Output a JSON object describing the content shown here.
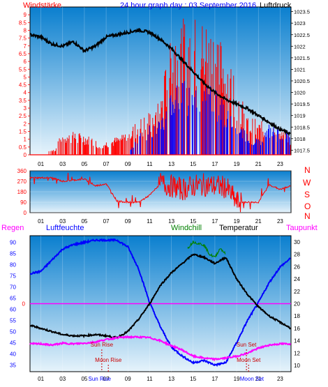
{
  "title": "24 hour graph day : 03 September 2016",
  "panels": {
    "wind": {
      "left_label": "Windstärke",
      "right_label": "Luftdruck"
    },
    "dir": {
      "compass": [
        "N",
        "W",
        "S",
        "O",
        "N"
      ]
    },
    "temp": {
      "labels": {
        "regen": "Regen",
        "luftfeuchte": "Luftfeuchte",
        "windchill": "Windchill",
        "temperatur": "Temperatur",
        "taupunkt": "Taupunkt"
      },
      "events": [
        {
          "label": "Sun Rise",
          "hour": 6.6
        },
        {
          "label": "Moon Rise",
          "hour": 7.2
        },
        {
          "label": "Sun Set",
          "hour": 19.9
        },
        {
          "label": "Moon Set",
          "hour": 20.1
        }
      ],
      "bottom_notes": [
        "Sun Rise",
        "Moon Set"
      ]
    }
  },
  "colors": {
    "bg_top": "#0a7fcf",
    "bg_bottom": "#e6f3fb",
    "wind": "#ff0000",
    "gust": "#0000ff",
    "pressure": "#000000",
    "humidity": "#0000ff",
    "temperature": "#000000",
    "dewpoint": "#ff00ff",
    "windchill": "#008000",
    "rain": "#ff00ff"
  },
  "chart_data": [
    {
      "type": "line",
      "name": "wind-pressure",
      "x_ticks": [
        "01",
        "03",
        "05",
        "07",
        "09",
        "11",
        "13",
        "15",
        "17",
        "19",
        "21",
        "23"
      ],
      "ylim_left": [
        0,
        9.5
      ],
      "yticks_left": [
        "0",
        "0.5",
        "1",
        "1.5",
        "2",
        "2.5",
        "3",
        "3.5",
        "4",
        "4.5",
        "5",
        "5.5",
        "6",
        "6.5",
        "7",
        "7.5",
        "8",
        "8.5",
        "9"
      ],
      "ylim_right": [
        1017.3,
        1023.7
      ],
      "yticks_right": [
        "1017.5",
        "1018",
        "1018.5",
        "1019",
        "1019.5",
        "1020",
        "1020.5",
        "1021",
        "1021.5",
        "1022",
        "1022.5",
        "1023",
        "1023.5"
      ],
      "pressure_points": [
        [
          0,
          1022.5
        ],
        [
          1,
          1022.4
        ],
        [
          2,
          1022.1
        ],
        [
          3,
          1022.0
        ],
        [
          4,
          1022.2
        ],
        [
          5,
          1021.8
        ],
        [
          6,
          1022.0
        ],
        [
          7,
          1022.4
        ],
        [
          8,
          1022.5
        ],
        [
          9,
          1022.6
        ],
        [
          10,
          1022.7
        ],
        [
          11,
          1022.6
        ],
        [
          12,
          1022.3
        ],
        [
          13,
          1021.9
        ],
        [
          14,
          1021.4
        ],
        [
          15,
          1020.9
        ],
        [
          16,
          1020.4
        ],
        [
          17,
          1020.0
        ],
        [
          18,
          1019.7
        ],
        [
          19,
          1019.5
        ],
        [
          20,
          1019.3
        ],
        [
          21,
          1019.0
        ],
        [
          22,
          1018.7
        ],
        [
          23,
          1018.4
        ],
        [
          24,
          1018.2
        ]
      ],
      "wind_profile": [
        [
          0,
          0
        ],
        [
          2.3,
          0.4
        ],
        [
          3,
          1.6
        ],
        [
          4,
          1.5
        ],
        [
          5,
          1.4
        ],
        [
          6.5,
          0.8
        ],
        [
          8,
          1.2
        ],
        [
          9.5,
          2
        ],
        [
          12,
          3.5
        ],
        [
          13,
          8.5
        ],
        [
          15,
          9
        ],
        [
          17,
          8.5
        ],
        [
          18.5,
          6
        ],
        [
          20,
          2.5
        ],
        [
          22,
          2
        ],
        [
          24,
          1.2
        ]
      ],
      "gust_profile": [
        [
          0,
          0
        ],
        [
          9,
          0
        ],
        [
          10,
          1.5
        ],
        [
          12,
          2.5
        ],
        [
          13,
          4.5
        ],
        [
          15,
          5
        ],
        [
          17,
          4.5
        ],
        [
          19,
          2
        ],
        [
          21,
          1
        ],
        [
          22,
          2
        ],
        [
          24,
          1.5
        ]
      ]
    },
    {
      "type": "scatter",
      "name": "wind-direction",
      "ylim": [
        0,
        360
      ],
      "yticks": [
        "0",
        "90",
        "180",
        "270",
        "360"
      ],
      "points_profile": [
        [
          0,
          300
        ],
        [
          2,
          300
        ],
        [
          3,
          270
        ],
        [
          5,
          290
        ],
        [
          6,
          230
        ],
        [
          7,
          250
        ],
        [
          8,
          100
        ],
        [
          9,
          90
        ],
        [
          10,
          90
        ],
        [
          11,
          150
        ],
        [
          12,
          250
        ],
        [
          13,
          230
        ],
        [
          14,
          200
        ],
        [
          15,
          230
        ],
        [
          16,
          240
        ],
        [
          17,
          230
        ],
        [
          18,
          220
        ],
        [
          19,
          90
        ],
        [
          21,
          90
        ],
        [
          22,
          240
        ],
        [
          23,
          200
        ],
        [
          24,
          230
        ]
      ]
    },
    {
      "type": "line",
      "name": "temp-humidity",
      "ylim_left": [
        32,
        93
      ],
      "yticks_left": [
        "35",
        "40",
        "45",
        "50",
        "55",
        "60",
        "65",
        "70",
        "75",
        "80",
        "85",
        "90"
      ],
      "ylim_right": [
        9,
        31
      ],
      "yticks_right": [
        "10",
        "12",
        "14",
        "16",
        "18",
        "20",
        "22",
        "24",
        "26",
        "28",
        "30"
      ],
      "zero_line_label": "0",
      "humidity": [
        [
          0,
          76
        ],
        [
          1,
          77
        ],
        [
          2,
          82
        ],
        [
          3,
          87
        ],
        [
          4,
          89
        ],
        [
          5,
          90
        ],
        [
          6,
          91
        ],
        [
          7,
          91
        ],
        [
          8,
          91
        ],
        [
          9,
          88
        ],
        [
          10,
          78
        ],
        [
          11,
          63
        ],
        [
          12,
          52
        ],
        [
          13,
          43
        ],
        [
          14,
          39
        ],
        [
          15,
          36
        ],
        [
          16,
          37
        ],
        [
          17,
          35
        ],
        [
          18,
          36
        ],
        [
          19,
          45
        ],
        [
          20,
          55
        ],
        [
          21,
          63
        ],
        [
          22,
          72
        ],
        [
          23,
          79
        ],
        [
          24,
          83
        ]
      ],
      "temperature": [
        [
          0,
          16.5
        ],
        [
          1,
          16
        ],
        [
          2,
          15.5
        ],
        [
          3,
          15
        ],
        [
          4,
          14.8
        ],
        [
          5,
          14.8
        ],
        [
          6,
          15
        ],
        [
          7,
          14.8
        ],
        [
          8,
          14.5
        ],
        [
          9,
          15.5
        ],
        [
          10,
          17.5
        ],
        [
          11,
          20
        ],
        [
          12,
          23
        ],
        [
          13,
          25
        ],
        [
          14,
          26.5
        ],
        [
          15,
          28
        ],
        [
          16,
          27.5
        ],
        [
          17,
          26.5
        ],
        [
          18,
          27.5
        ],
        [
          19,
          24
        ],
        [
          20,
          21.5
        ],
        [
          21,
          19.5
        ],
        [
          22,
          18
        ],
        [
          23,
          17
        ],
        [
          24,
          16
        ]
      ],
      "dewpoint": [
        [
          0,
          13.5
        ],
        [
          1,
          13.5
        ],
        [
          2,
          13.3
        ],
        [
          3,
          13.6
        ],
        [
          4,
          13.5
        ],
        [
          5,
          13.6
        ],
        [
          6,
          13.8
        ],
        [
          7,
          14.2
        ],
        [
          8,
          14.5
        ],
        [
          9,
          14.6
        ],
        [
          10,
          14.6
        ],
        [
          11,
          14.5
        ],
        [
          12,
          14
        ],
        [
          13,
          13.2
        ],
        [
          14,
          12.5
        ],
        [
          15,
          11.5
        ],
        [
          16,
          11.2
        ],
        [
          17,
          11
        ],
        [
          18,
          11.2
        ],
        [
          19,
          11.5
        ],
        [
          20,
          12
        ],
        [
          21,
          12.8
        ],
        [
          22,
          13.3
        ],
        [
          23,
          13.5
        ],
        [
          24,
          13.5
        ]
      ],
      "windchill": [
        [
          14.5,
          29
        ],
        [
          15,
          30
        ],
        [
          16,
          29.5
        ],
        [
          16.5,
          28
        ],
        [
          17,
          27.5
        ],
        [
          17.5,
          29
        ],
        [
          18,
          28
        ]
      ]
    }
  ]
}
